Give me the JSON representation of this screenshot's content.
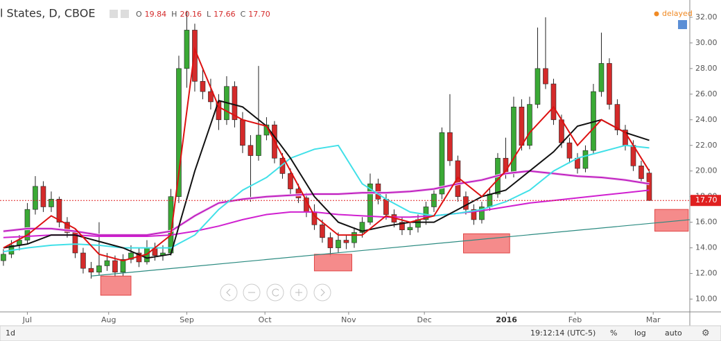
{
  "chart_data": {
    "type": "candlestick",
    "header": {
      "symbol": "l States, D, CBOE",
      "ohlc": [
        {
          "key": "O",
          "value": "19.84"
        },
        {
          "key": "H",
          "value": "20.16"
        },
        {
          "key": "L",
          "value": "17.66"
        },
        {
          "key": "C",
          "value": "17.70"
        }
      ],
      "status": "delayed"
    },
    "open": [
      13.0,
      13.5,
      14.2,
      14.6,
      17.0,
      18.8,
      17.2,
      17.8,
      16.0,
      15.2,
      13.6,
      12.4,
      12.1,
      12.6,
      13.0,
      12.1,
      13.1,
      13.6,
      12.9,
      14.0,
      13.4,
      13.6,
      18.0,
      28.0,
      31.0,
      27.0,
      26.2,
      25.4,
      24.0,
      26.6,
      24.0,
      22.0,
      21.2,
      22.8,
      23.6,
      21.0,
      19.8,
      18.6,
      17.9,
      16.8,
      15.8,
      14.8,
      14.0,
      14.6,
      14.4,
      15.2,
      16.0,
      19.0,
      17.8,
      16.6,
      16.0,
      15.4,
      15.6,
      16.2,
      17.2,
      18.2,
      23.0,
      20.8,
      18.0,
      17.0,
      16.2,
      17.2,
      18.2,
      21.0,
      19.8,
      25.0,
      22.0,
      25.2,
      28.0,
      26.8,
      24.0,
      22.2,
      21.0,
      20.2,
      21.6,
      26.2,
      28.4,
      25.2,
      23.2,
      22.0,
      20.4,
      19.84
    ],
    "high": [
      13.9,
      14.6,
      15.0,
      17.5,
      19.6,
      19.2,
      18.4,
      18.0,
      16.4,
      15.5,
      14.0,
      12.9,
      16.0,
      13.6,
      13.4,
      13.5,
      14.2,
      14.0,
      14.6,
      14.4,
      14.2,
      18.6,
      29.0,
      32.5,
      31.5,
      28.0,
      27.2,
      26.0,
      27.4,
      27.0,
      24.6,
      22.8,
      28.2,
      24.2,
      23.9,
      21.4,
      20.2,
      19.0,
      18.3,
      17.4,
      16.2,
      15.2,
      15.2,
      15.0,
      15.6,
      16.4,
      19.8,
      19.4,
      18.2,
      17.0,
      16.4,
      16.0,
      16.6,
      17.6,
      18.6,
      23.4,
      26.0,
      21.2,
      18.4,
      17.4,
      17.6,
      18.6,
      21.4,
      22.6,
      25.8,
      25.6,
      25.8,
      31.2,
      32.0,
      27.2,
      24.4,
      22.6,
      21.4,
      22.0,
      26.8,
      30.8,
      28.8,
      25.6,
      23.6,
      22.4,
      20.8,
      20.16
    ],
    "low": [
      12.6,
      13.2,
      13.8,
      14.3,
      16.6,
      16.8,
      16.8,
      15.6,
      14.8,
      13.2,
      12.0,
      11.6,
      11.9,
      12.2,
      11.7,
      11.8,
      12.8,
      12.5,
      12.7,
      13.0,
      13.0,
      13.4,
      17.5,
      26.5,
      26.2,
      25.6,
      24.8,
      23.2,
      23.6,
      23.4,
      21.4,
      17.6,
      20.8,
      22.4,
      20.6,
      19.4,
      18.2,
      17.5,
      16.4,
      15.4,
      14.4,
      13.3,
      13.6,
      13.9,
      14.0,
      14.8,
      15.8,
      17.4,
      16.2,
      15.6,
      15.0,
      15.0,
      15.2,
      15.8,
      16.8,
      17.8,
      20.4,
      17.6,
      16.6,
      15.8,
      15.9,
      16.9,
      17.9,
      19.4,
      19.5,
      21.6,
      21.7,
      24.9,
      26.4,
      23.6,
      21.8,
      20.6,
      19.8,
      19.9,
      21.3,
      25.8,
      24.8,
      22.8,
      21.6,
      20.0,
      19.0,
      17.66
    ],
    "close": [
      13.5,
      14.2,
      14.6,
      17.0,
      18.8,
      17.2,
      17.8,
      16.0,
      15.2,
      13.6,
      12.4,
      12.1,
      12.6,
      13.0,
      12.1,
      13.1,
      13.6,
      12.9,
      14.0,
      13.4,
      13.6,
      18.0,
      28.0,
      31.0,
      27.0,
      26.2,
      25.4,
      24.0,
      26.6,
      24.0,
      22.0,
      21.2,
      22.8,
      23.6,
      21.0,
      19.8,
      18.6,
      17.9,
      16.8,
      15.8,
      14.8,
      14.0,
      14.6,
      14.4,
      15.2,
      16.0,
      19.0,
      17.8,
      16.6,
      16.0,
      15.4,
      15.6,
      16.2,
      17.2,
      18.2,
      23.0,
      20.8,
      18.0,
      17.0,
      16.2,
      17.2,
      18.2,
      21.0,
      19.8,
      25.0,
      22.0,
      25.2,
      28.0,
      26.8,
      24.0,
      22.2,
      21.0,
      20.2,
      21.6,
      26.2,
      28.4,
      25.2,
      23.2,
      22.0,
      20.4,
      19.4,
      17.7
    ],
    "up_color": "#3aa935",
    "down_color": "#d42a2a",
    "overlays": {
      "x": [
        0,
        3,
        6,
        9,
        12,
        15,
        18,
        21,
        24,
        27,
        30,
        33,
        36,
        39,
        42,
        45,
        48,
        51,
        54,
        57,
        60,
        63,
        66,
        69,
        72,
        75,
        78,
        81
      ],
      "series": [
        {
          "color": "#f4d3f4",
          "values": [
            15.3,
            15.5,
            15.5,
            15.3,
            15.0,
            15.0,
            15.0,
            15.3,
            16.5,
            17.5,
            17.8,
            18.0,
            18.1,
            18.2,
            18.2,
            18.3,
            18.3,
            18.4,
            18.6,
            19.0,
            19.3,
            19.8,
            20.0,
            19.8,
            19.6,
            19.5,
            19.3,
            19.0
          ]
        },
        {
          "color": "#c020c0",
          "values": [
            15.3,
            15.5,
            15.5,
            15.3,
            15.0,
            15.0,
            15.0,
            15.3,
            16.5,
            17.5,
            17.8,
            18.0,
            18.1,
            18.2,
            18.2,
            18.3,
            18.3,
            18.4,
            18.6,
            19.0,
            19.3,
            19.8,
            20.0,
            19.8,
            19.6,
            19.5,
            19.3,
            19.0
          ]
        },
        {
          "color": "#d020d0",
          "values": [
            14.8,
            14.9,
            15.0,
            15.0,
            14.9,
            14.9,
            14.9,
            15.0,
            15.3,
            15.7,
            16.2,
            16.6,
            16.8,
            16.8,
            16.6,
            16.5,
            16.4,
            16.4,
            16.5,
            16.7,
            16.9,
            17.2,
            17.5,
            17.7,
            17.9,
            18.1,
            18.3,
            18.5
          ]
        },
        {
          "color": "#40e0e8",
          "values": [
            13.7,
            14.0,
            14.2,
            14.3,
            14.2,
            14.0,
            14.0,
            14.0,
            15.0,
            17.0,
            18.5,
            19.5,
            21.0,
            21.7,
            22.0,
            19.0,
            17.8,
            16.8,
            16.5,
            16.7,
            17.0,
            17.6,
            18.5,
            20.0,
            21.0,
            21.5,
            22.0,
            21.8
          ]
        },
        {
          "color": "#111111",
          "values": [
            14.0,
            14.3,
            15.0,
            15.0,
            14.5,
            14.0,
            13.2,
            13.5,
            20.0,
            25.5,
            25.0,
            23.5,
            21.0,
            18.0,
            16.0,
            15.3,
            15.7,
            16.0,
            16.0,
            17.0,
            18.0,
            18.5,
            20.0,
            21.5,
            23.5,
            24.0,
            23.0,
            22.4
          ]
        },
        {
          "color": "#dd1111",
          "values": [
            14.0,
            15.0,
            16.5,
            15.5,
            13.5,
            13.0,
            13.5,
            15.0,
            29.5,
            25.0,
            24.0,
            23.5,
            20.0,
            16.5,
            15.0,
            15.0,
            16.5,
            16.0,
            16.5,
            19.5,
            18.0,
            20.0,
            23.0,
            25.0,
            22.0,
            24.0,
            23.0,
            20.0
          ]
        }
      ]
    },
    "trendline": {
      "x": [
        11,
        86.1
      ],
      "y": [
        11.8,
        16.2
      ],
      "color": "#2a8a80"
    },
    "highlights": [
      {
        "x": [
          12.2,
          16
        ],
        "y": [
          10.3,
          11.8
        ]
      },
      {
        "x": [
          39,
          43.7
        ],
        "y": [
          12.2,
          13.5
        ]
      },
      {
        "x": [
          57.7,
          63.5
        ],
        "y": [
          13.6,
          15.1
        ]
      },
      {
        "x": [
          81.7,
          85.9
        ],
        "y": [
          15.3,
          17.0
        ]
      }
    ],
    "last_price": {
      "value": 17.7,
      "label": "17.70",
      "color": "#e02020"
    },
    "xlim": [
      -0.43,
      86.09
    ],
    "ylim": [
      9,
      33.35
    ],
    "xticks": [
      {
        "value": 3,
        "label": "Jul"
      },
      {
        "value": 13.2,
        "label": "Aug"
      },
      {
        "value": 23,
        "label": "Sep"
      },
      {
        "value": 32.8,
        "label": "Oct"
      },
      {
        "value": 43.3,
        "label": "Nov"
      },
      {
        "value": 52.8,
        "label": "Dec"
      },
      {
        "value": 63.1,
        "label": "2016"
      },
      {
        "value": 71.7,
        "label": "Feb"
      },
      {
        "value": 81.5,
        "label": "Mar"
      }
    ],
    "yticks": [
      {
        "value": 10,
        "label": "10.00"
      },
      {
        "value": 12,
        "label": "12.00"
      },
      {
        "value": 14,
        "label": "14.00"
      },
      {
        "value": 16,
        "label": "16.00"
      },
      {
        "value": 18,
        "label": "18.00"
      },
      {
        "value": 20,
        "label": "20.00"
      },
      {
        "value": 22,
        "label": "22.00"
      },
      {
        "value": 24,
        "label": "24.00"
      },
      {
        "value": 26,
        "label": "26.00"
      },
      {
        "value": 28,
        "label": "28.00"
      },
      {
        "value": 30,
        "label": "30.00"
      },
      {
        "value": 32,
        "label": "32.00"
      }
    ],
    "grid": true,
    "footer": {
      "interval": "1d",
      "clock": "19:12:14 (UTC-5)",
      "percent": "%",
      "log": "log",
      "auto": "auto"
    }
  }
}
